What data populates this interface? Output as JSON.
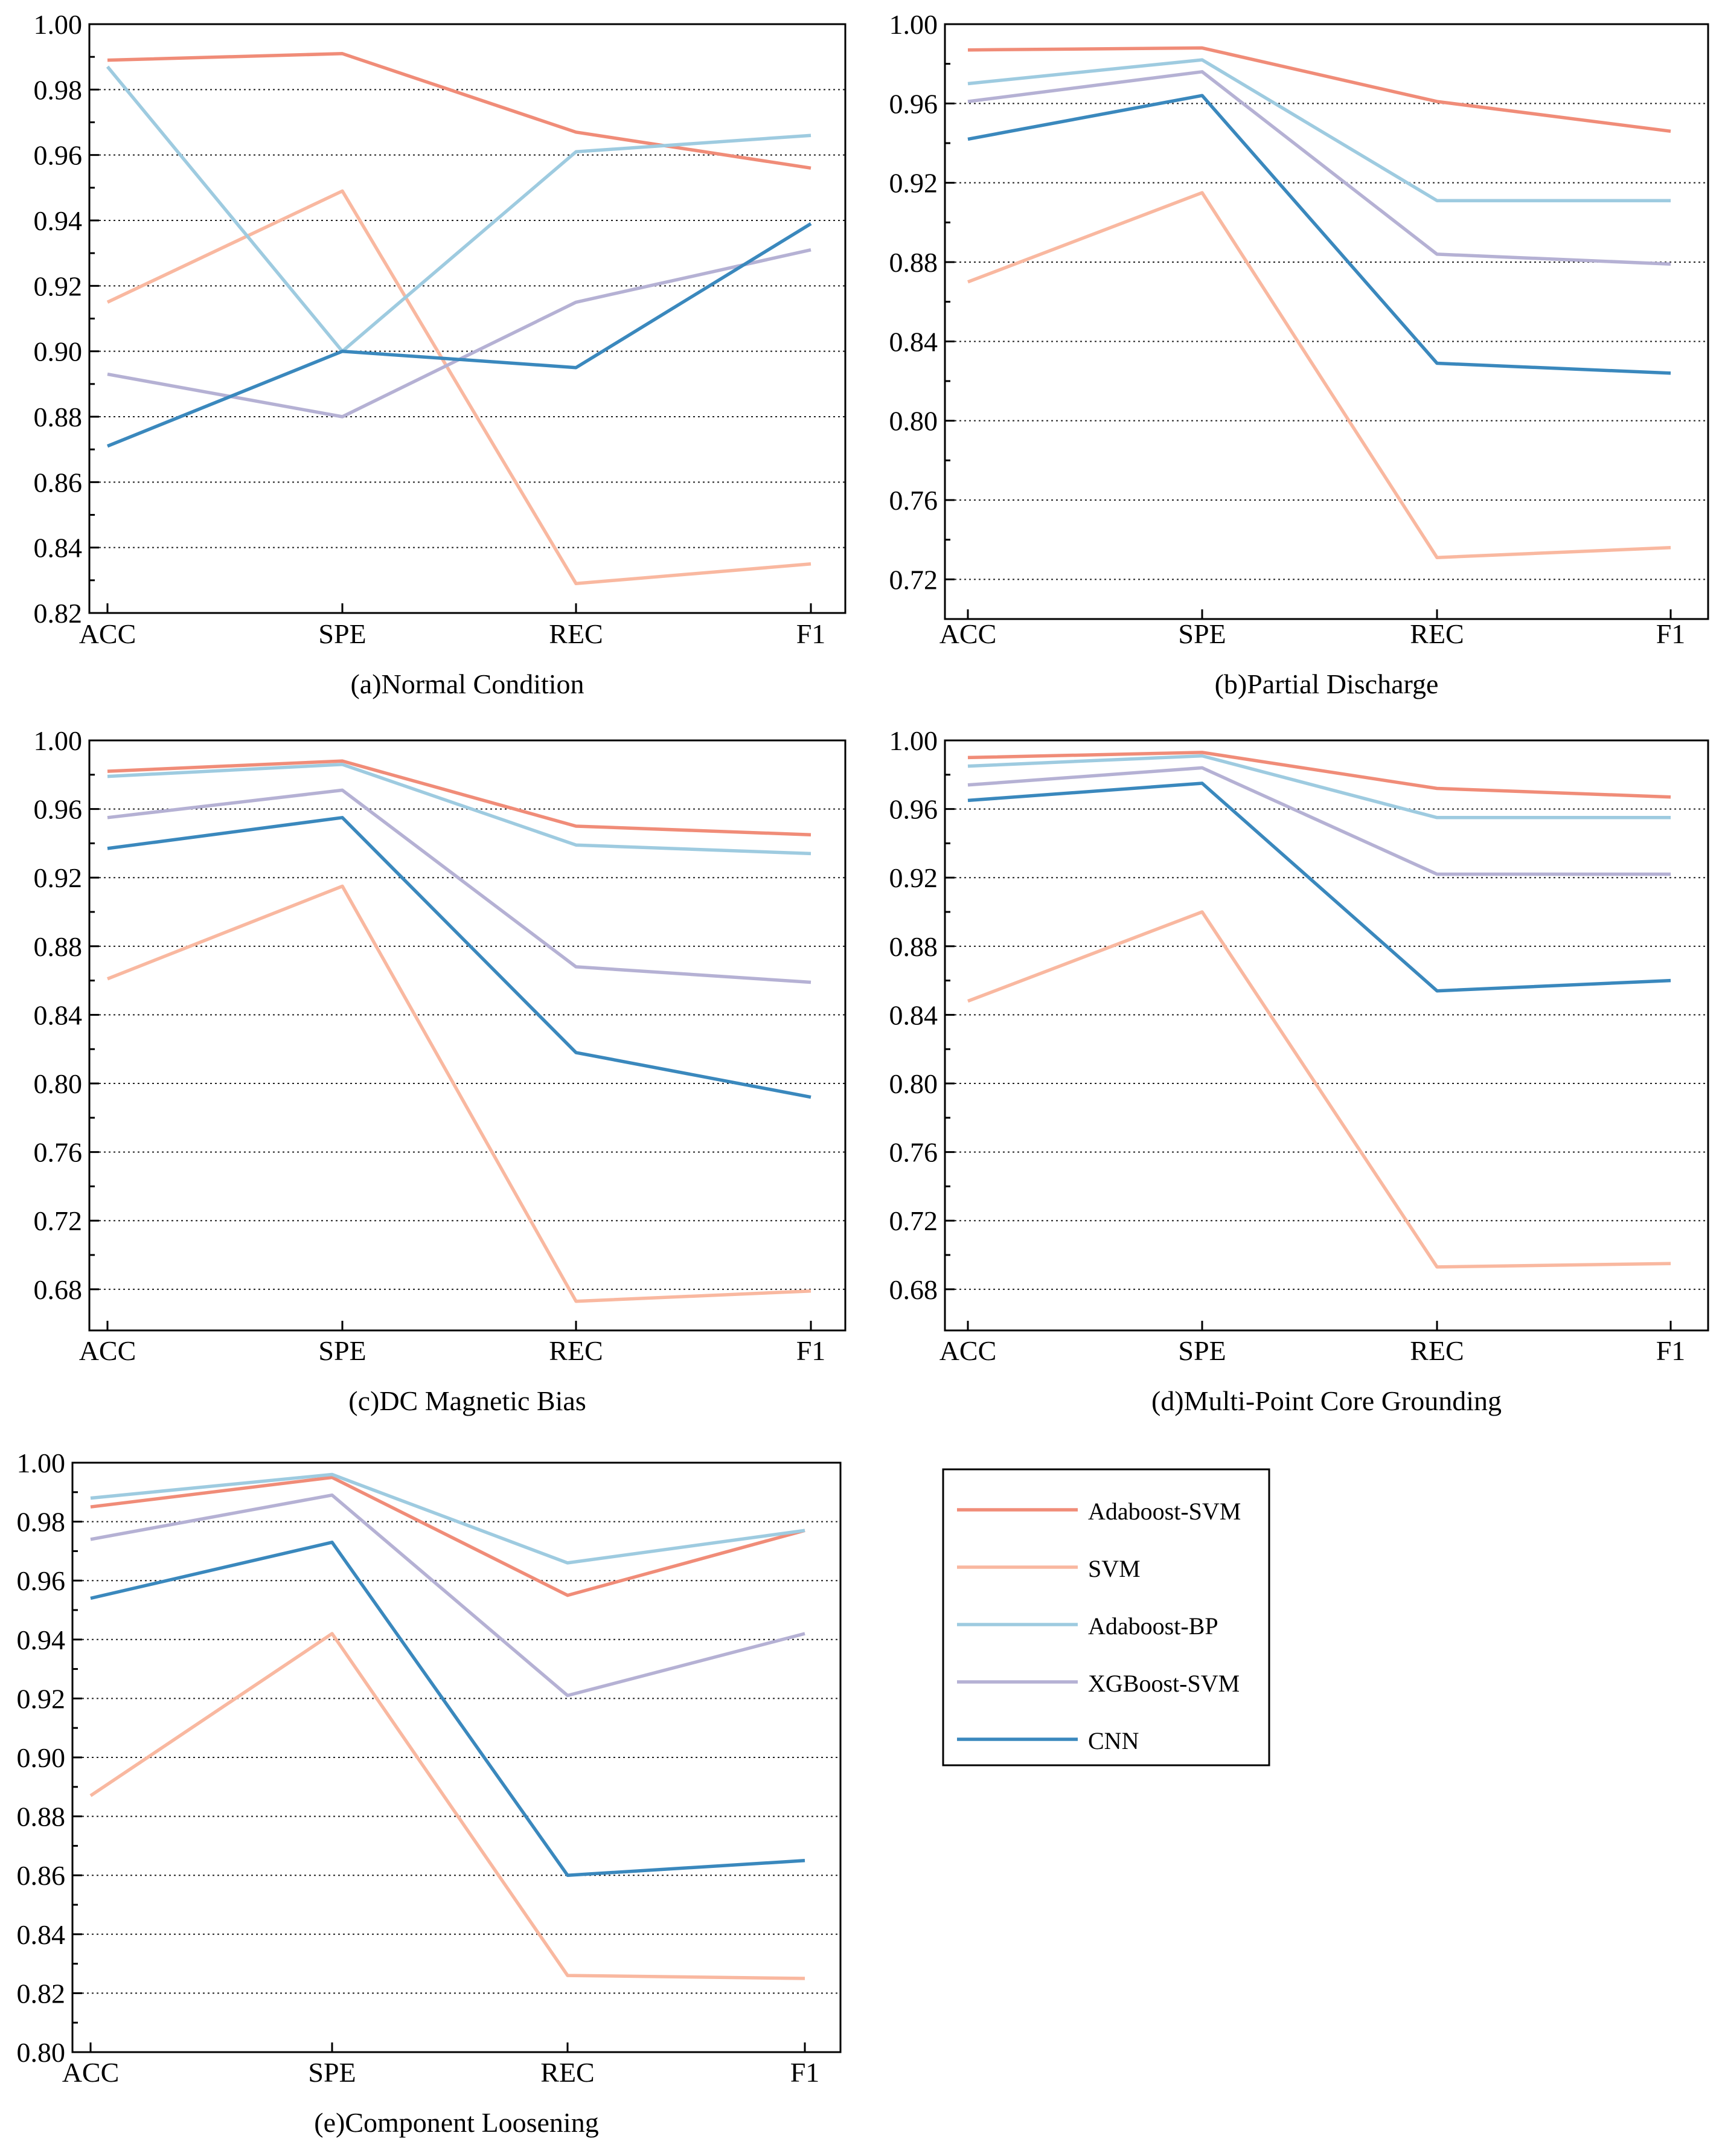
{
  "series_names": [
    "Adaboost-SVM",
    "SVM",
    "Adaboost-BP",
    "XGBoost-SVM",
    "CNN"
  ],
  "series_colors": [
    "#f08c78",
    "#f9b8a0",
    "#9ecbe0",
    "#b5b1d4",
    "#3a88bd"
  ],
  "chart_data": [
    {
      "type": "line",
      "title": "(a)Normal Condition",
      "categories": [
        "ACC",
        "SPE",
        "REC",
        "F1"
      ],
      "ylim": [
        0.82,
        1.0
      ],
      "yticks": [
        0.82,
        0.84,
        0.86,
        0.88,
        0.9,
        0.92,
        0.94,
        0.96,
        0.98,
        1.0
      ],
      "ytick_labels": [
        "0.82",
        "0.84",
        "0.86",
        "0.88",
        "0.90",
        "0.92",
        "0.94",
        "0.96",
        "0.98",
        "1.00"
      ],
      "grid": true,
      "series": [
        {
          "name": "Adaboost-SVM",
          "values": [
            0.989,
            0.991,
            0.967,
            0.956
          ]
        },
        {
          "name": "SVM",
          "values": [
            0.915,
            0.949,
            0.829,
            0.835
          ]
        },
        {
          "name": "Adaboost-BP",
          "values": [
            0.987,
            0.9,
            0.961,
            0.966
          ]
        },
        {
          "name": "XGBoost-SVM",
          "values": [
            0.893,
            0.88,
            0.915,
            0.931
          ]
        },
        {
          "name": "CNN",
          "values": [
            0.871,
            0.9,
            0.895,
            0.939
          ]
        }
      ]
    },
    {
      "type": "line",
      "title": "(b)Partial Discharge",
      "categories": [
        "ACC",
        "SPE",
        "REC",
        "F1"
      ],
      "ylim": [
        0.7,
        1.0
      ],
      "yticks": [
        0.72,
        0.76,
        0.8,
        0.84,
        0.88,
        0.92,
        0.96,
        1.0
      ],
      "ytick_labels": [
        "0.72",
        "0.76",
        "0.80",
        "0.84",
        "0.88",
        "0.92",
        "0.96",
        "1.00"
      ],
      "grid": true,
      "series": [
        {
          "name": "Adaboost-SVM",
          "values": [
            0.987,
            0.988,
            0.961,
            0.946
          ]
        },
        {
          "name": "SVM",
          "values": [
            0.87,
            0.915,
            0.731,
            0.736
          ]
        },
        {
          "name": "Adaboost-BP",
          "values": [
            0.97,
            0.982,
            0.911,
            0.911
          ]
        },
        {
          "name": "XGBoost-SVM",
          "values": [
            0.961,
            0.976,
            0.884,
            0.879
          ]
        },
        {
          "name": "CNN",
          "values": [
            0.942,
            0.964,
            0.829,
            0.824
          ]
        }
      ]
    },
    {
      "type": "line",
      "title": "(c)DC Magnetic Bias",
      "categories": [
        "ACC",
        "SPE",
        "REC",
        "F1"
      ],
      "ylim": [
        0.656,
        1.0
      ],
      "yticks": [
        0.68,
        0.72,
        0.76,
        0.8,
        0.84,
        0.88,
        0.92,
        0.96,
        1.0
      ],
      "ytick_labels": [
        "0.68",
        "0.72",
        "0.76",
        "0.80",
        "0.84",
        "0.88",
        "0.92",
        "0.96",
        "1.00"
      ],
      "grid": true,
      "series": [
        {
          "name": "Adaboost-SVM",
          "values": [
            0.982,
            0.988,
            0.95,
            0.945
          ]
        },
        {
          "name": "SVM",
          "values": [
            0.861,
            0.915,
            0.673,
            0.679
          ]
        },
        {
          "name": "Adaboost-BP",
          "values": [
            0.979,
            0.986,
            0.939,
            0.934
          ]
        },
        {
          "name": "XGBoost-SVM",
          "values": [
            0.955,
            0.971,
            0.868,
            0.859
          ]
        },
        {
          "name": "CNN",
          "values": [
            0.937,
            0.955,
            0.818,
            0.792
          ]
        }
      ]
    },
    {
      "type": "line",
      "title": "(d)Multi-Point Core Grounding",
      "categories": [
        "ACC",
        "SPE",
        "REC",
        "F1"
      ],
      "ylim": [
        0.656,
        1.0
      ],
      "yticks": [
        0.68,
        0.72,
        0.76,
        0.8,
        0.84,
        0.88,
        0.92,
        0.96,
        1.0
      ],
      "ytick_labels": [
        "0.68",
        "0.72",
        "0.76",
        "0.80",
        "0.84",
        "0.88",
        "0.92",
        "0.96",
        "1.00"
      ],
      "grid": true,
      "series": [
        {
          "name": "Adaboost-SVM",
          "values": [
            0.99,
            0.993,
            0.972,
            0.967
          ]
        },
        {
          "name": "SVM",
          "values": [
            0.848,
            0.9,
            0.693,
            0.695
          ]
        },
        {
          "name": "Adaboost-BP",
          "values": [
            0.985,
            0.991,
            0.955,
            0.955
          ]
        },
        {
          "name": "XGBoost-SVM",
          "values": [
            0.974,
            0.984,
            0.922,
            0.922
          ]
        },
        {
          "name": "CNN",
          "values": [
            0.965,
            0.975,
            0.854,
            0.86
          ]
        }
      ]
    },
    {
      "type": "line",
      "title": "(e)Component Loosening",
      "categories": [
        "ACC",
        "SPE",
        "REC",
        "F1"
      ],
      "ylim": [
        0.8,
        1.0
      ],
      "yticks": [
        0.8,
        0.82,
        0.84,
        0.86,
        0.88,
        0.9,
        0.92,
        0.94,
        0.96,
        0.98,
        1.0
      ],
      "ytick_labels": [
        "0.80",
        "0.82",
        "0.84",
        "0.86",
        "0.88",
        "0.90",
        "0.92",
        "0.94",
        "0.96",
        "0.98",
        "1.00"
      ],
      "grid": true,
      "series": [
        {
          "name": "Adaboost-SVM",
          "values": [
            0.985,
            0.995,
            0.955,
            0.977
          ]
        },
        {
          "name": "SVM",
          "values": [
            0.887,
            0.942,
            0.826,
            0.825
          ]
        },
        {
          "name": "Adaboost-BP",
          "values": [
            0.988,
            0.996,
            0.966,
            0.977
          ]
        },
        {
          "name": "XGBoost-SVM",
          "values": [
            0.974,
            0.989,
            0.921,
            0.942
          ]
        },
        {
          "name": "CNN",
          "values": [
            0.954,
            0.973,
            0.86,
            0.865
          ]
        }
      ]
    }
  ]
}
